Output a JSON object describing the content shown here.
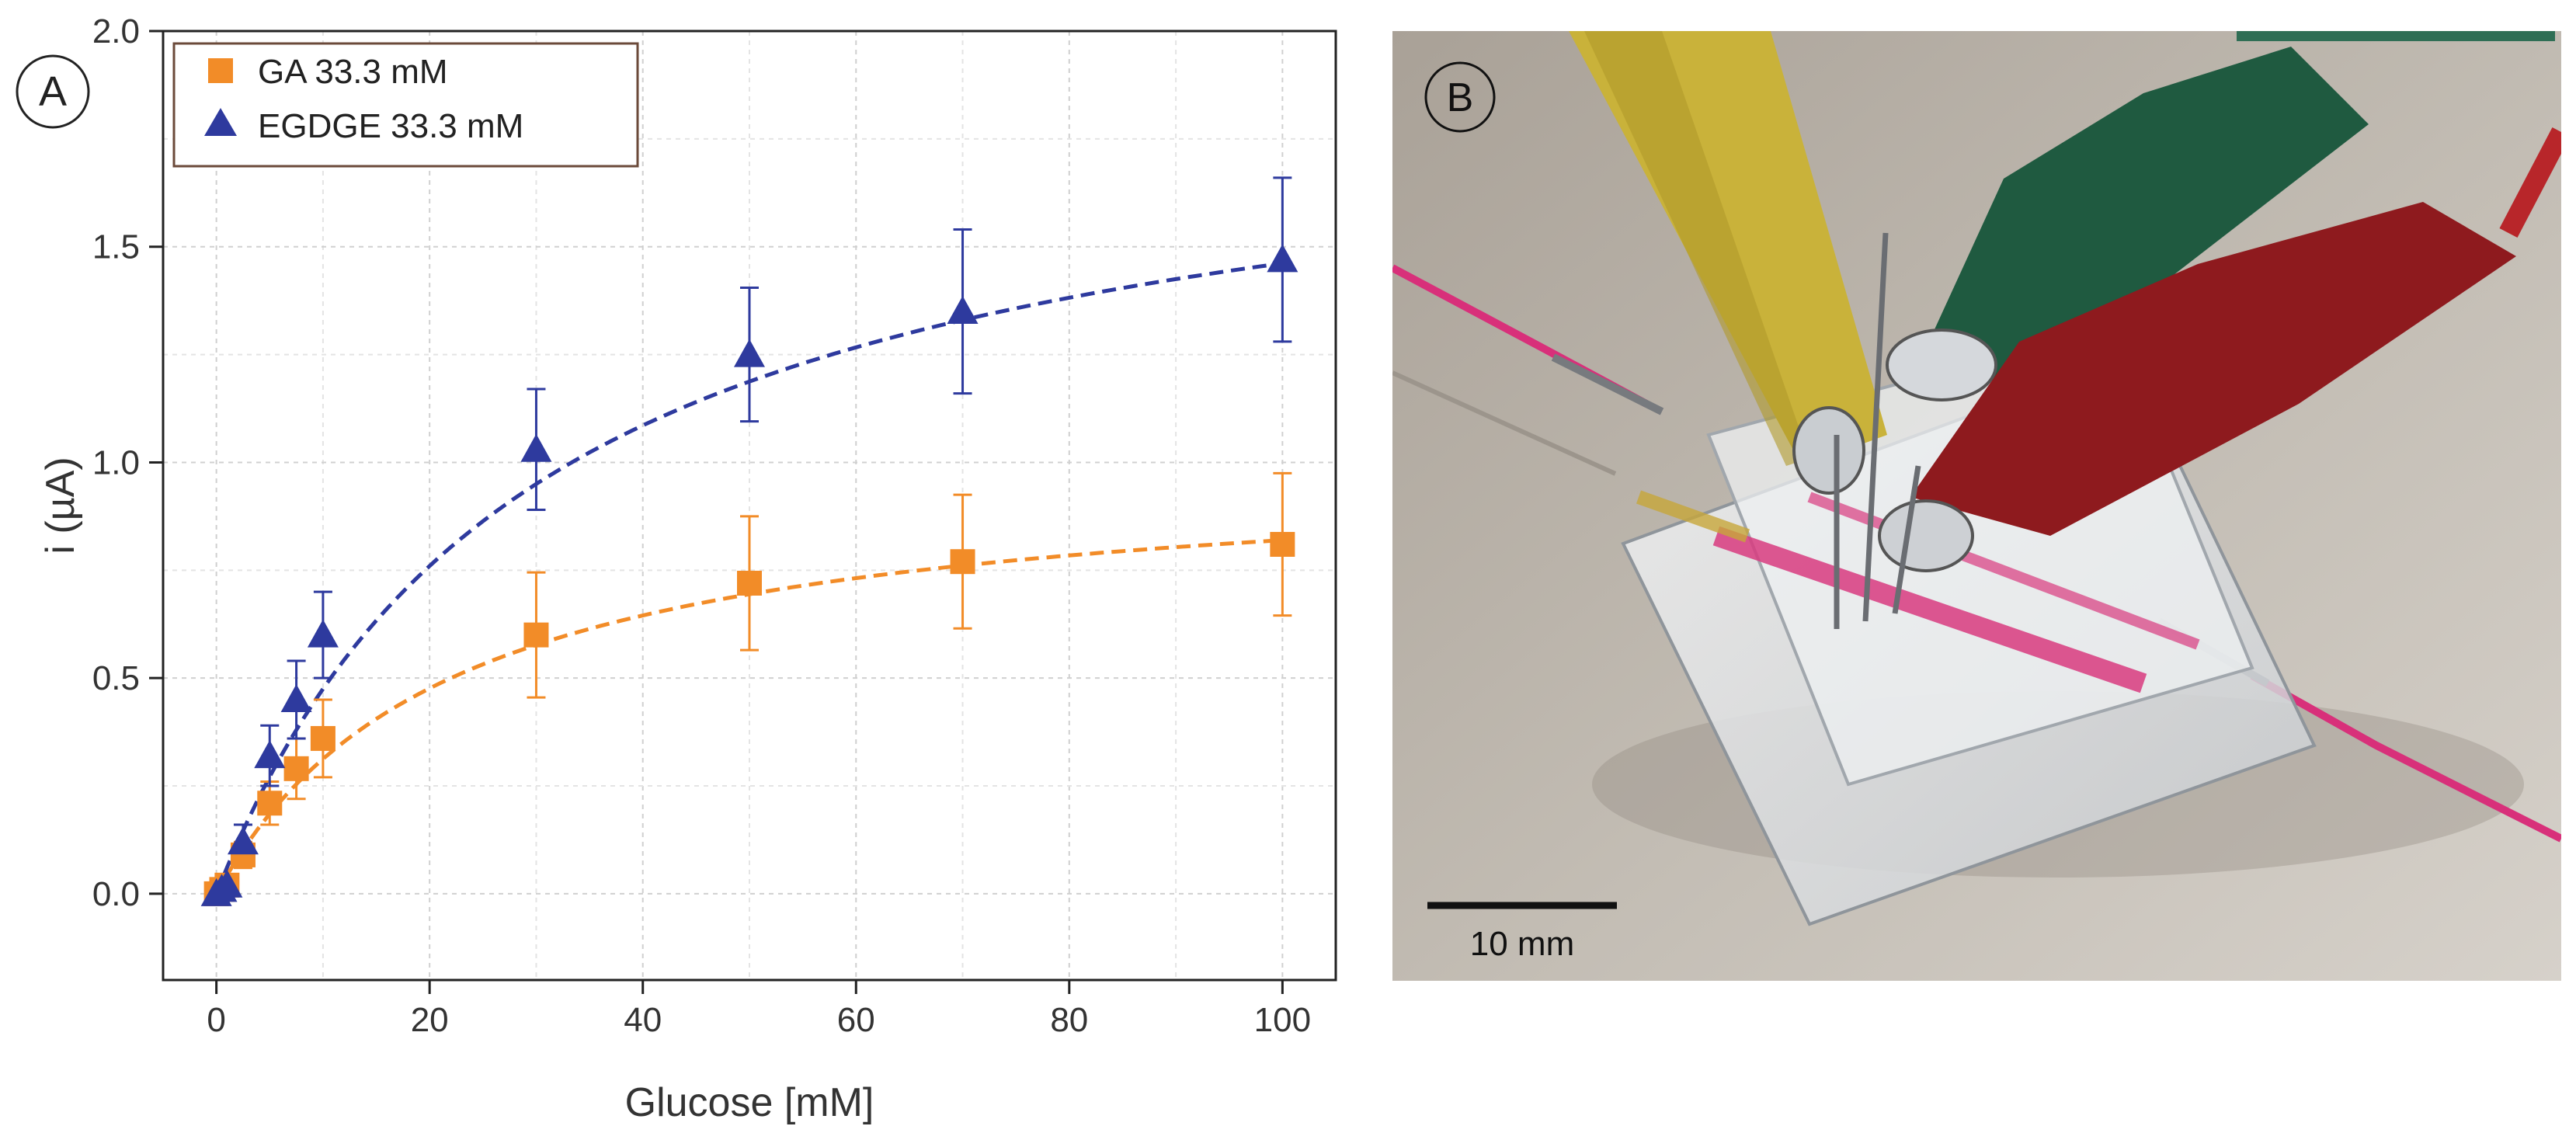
{
  "panel_a": {
    "label": "A",
    "legend": {
      "placement": "top-left",
      "entries": [
        {
          "label": "GA 33.3 mM",
          "marker": "square",
          "color": "#f28c28"
        },
        {
          "label": "EGDGE 33.3 mM",
          "marker": "triangle",
          "color": "#2e3a9e"
        }
      ]
    }
  },
  "chart_data": {
    "type": "scatter",
    "xlabel": "Glucose [mM]",
    "ylabel": "i (µA)",
    "xlim": [
      -5,
      105
    ],
    "ylim": [
      -0.2,
      2.0
    ],
    "xticks": [
      0,
      20,
      40,
      60,
      80,
      100
    ],
    "yticks": [
      0.0,
      0.5,
      1.0,
      1.5,
      2.0
    ],
    "xtick_labels": [
      "0",
      "20",
      "40",
      "60",
      "80",
      "100"
    ],
    "ytick_labels": [
      "0.0",
      "0.5",
      "1.0",
      "1.5",
      "2.0"
    ],
    "grid": true,
    "series": [
      {
        "name": "GA 33.3 mM",
        "color": "#f28c28",
        "marker": "square",
        "x": [
          0,
          0.5,
          1,
          2.5,
          5,
          7.5,
          10,
          30,
          50,
          70,
          100
        ],
        "y": [
          0.0,
          0.01,
          0.02,
          0.09,
          0.21,
          0.29,
          0.36,
          0.6,
          0.72,
          0.77,
          0.81
        ],
        "err": [
          0.01,
          0.01,
          0.02,
          0.03,
          0.05,
          0.07,
          0.09,
          0.145,
          0.155,
          0.155,
          0.165
        ],
        "fit": {
          "model": "michaelis-menten",
          "vmax": 1.0,
          "km": 22,
          "style": "dashed"
        }
      },
      {
        "name": "EGDGE 33.3 mM",
        "color": "#2e3a9e",
        "marker": "triangle",
        "x": [
          0,
          0.5,
          1,
          2.5,
          5,
          7.5,
          10,
          30,
          50,
          70,
          100
        ],
        "y": [
          0.0,
          0.01,
          0.02,
          0.12,
          0.32,
          0.45,
          0.6,
          1.03,
          1.25,
          1.35,
          1.47
        ],
        "err": [
          0.01,
          0.01,
          0.02,
          0.04,
          0.07,
          0.09,
          0.1,
          0.14,
          0.155,
          0.19,
          0.19
        ],
        "fit": {
          "model": "michaelis-menten",
          "vmax": 1.9,
          "km": 30,
          "style": "dashed"
        }
      }
    ]
  },
  "panel_b": {
    "label": "B",
    "scale_bar_label": "10 mm",
    "colors": {
      "background": "#b9b2a8",
      "yellow_clip": "#c9b23a",
      "green_clip": "#1f5a40",
      "red_clip": "#8e1a1e",
      "pink_tube": "#d8307a",
      "chip": "#e6e8ea"
    }
  }
}
